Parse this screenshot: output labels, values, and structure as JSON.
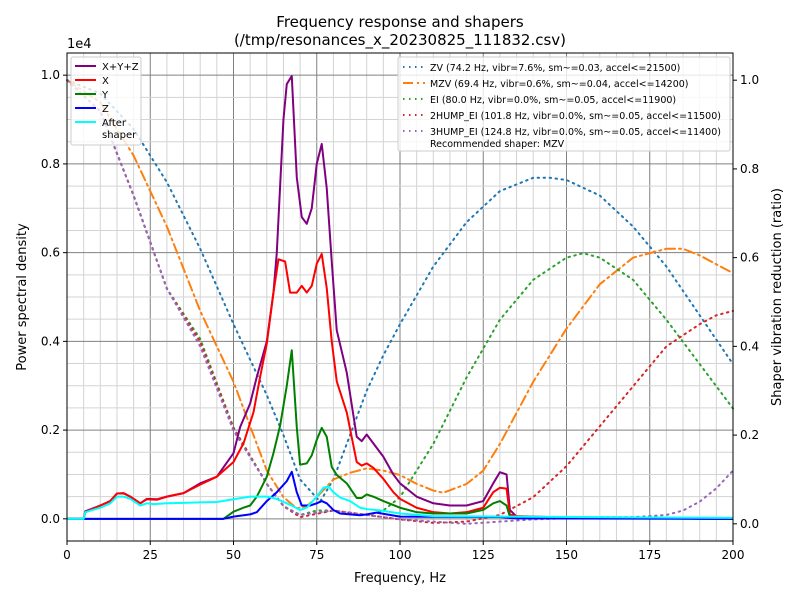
{
  "chart_data": {
    "type": "line",
    "title": "Frequency response and shapers",
    "subtitle": "(/tmp/resonances_x_20230825_111832.csv)",
    "xlabel": "Frequency, Hz",
    "ylabel": "Power spectral density",
    "ylabel_right": "Shaper vibration reduction (ratio)",
    "y_offset_label": "1e4",
    "xlim": [
      0,
      200
    ],
    "ylim": [
      -0.05,
      1.05
    ],
    "ylim_right": [
      -0.05,
      1.05
    ],
    "grid": true,
    "x_ticks": [
      "0",
      "25",
      "50",
      "75",
      "100",
      "125",
      "150",
      "175",
      "200"
    ],
    "y_ticks": [
      "0.0",
      "0.2",
      "0.4",
      "0.6",
      "0.8",
      "1.0"
    ],
    "y_ticks_right": [
      "0.0",
      "0.2",
      "0.4",
      "0.6",
      "0.8",
      "1.0"
    ],
    "legend_left_position": "top-left",
    "legend_right_position": "top-right",
    "psd_series": [
      {
        "name": "X+Y+Z",
        "color": "#800080",
        "x": [
          0,
          5,
          5.5,
          10,
          13,
          15,
          17,
          19,
          22,
          24,
          27,
          30,
          35,
          40,
          45,
          50,
          52,
          55,
          57,
          60,
          62,
          63,
          65,
          66,
          67.5,
          69,
          70.5,
          72,
          73.5,
          75,
          76.5,
          78,
          79.5,
          81,
          84,
          87,
          88.5,
          90,
          92,
          95,
          98,
          100,
          105,
          110,
          115,
          120,
          125,
          128,
          130,
          132,
          133,
          135,
          140,
          150,
          200
        ],
        "y": [
          0,
          0,
          0.017,
          0.03,
          0.04,
          0.057,
          0.058,
          0.05,
          0.035,
          0.045,
          0.044,
          0.05,
          0.058,
          0.08,
          0.095,
          0.148,
          0.207,
          0.26,
          0.32,
          0.4,
          0.51,
          0.6,
          0.9,
          0.98,
          0.998,
          0.77,
          0.68,
          0.665,
          0.7,
          0.8,
          0.845,
          0.745,
          0.58,
          0.425,
          0.33,
          0.185,
          0.175,
          0.19,
          0.17,
          0.14,
          0.1,
          0.08,
          0.05,
          0.035,
          0.03,
          0.03,
          0.04,
          0.08,
          0.105,
          0.1,
          0.02,
          0.005,
          0.004,
          0.002,
          0
        ]
      },
      {
        "name": "X",
        "color": "#ff0000",
        "x": [
          0,
          5,
          5.5,
          10,
          13,
          15,
          17,
          19,
          22,
          24,
          27,
          30,
          35,
          40,
          45,
          50,
          53,
          56,
          58,
          60,
          62,
          63.5,
          65.5,
          67,
          69,
          70.5,
          72,
          73.5,
          75,
          76.5,
          78,
          79.5,
          81,
          84,
          87,
          88.5,
          90,
          92,
          95,
          98,
          100,
          105,
          110,
          115,
          120,
          125,
          128,
          130,
          132,
          133,
          135,
          150,
          200
        ],
        "y": [
          0,
          0,
          0.015,
          0.03,
          0.04,
          0.057,
          0.057,
          0.05,
          0.035,
          0.044,
          0.043,
          0.05,
          0.058,
          0.077,
          0.095,
          0.128,
          0.17,
          0.24,
          0.32,
          0.395,
          0.51,
          0.585,
          0.58,
          0.51,
          0.51,
          0.525,
          0.51,
          0.525,
          0.575,
          0.597,
          0.52,
          0.4,
          0.31,
          0.24,
          0.128,
          0.12,
          0.125,
          0.115,
          0.09,
          0.06,
          0.045,
          0.025,
          0.015,
          0.012,
          0.015,
          0.025,
          0.06,
          0.07,
          0.068,
          0.01,
          0.006,
          0.003,
          0
        ]
      },
      {
        "name": "Y",
        "color": "#008000",
        "x": [
          0,
          47,
          50,
          53,
          55,
          57,
          60,
          62,
          64,
          66,
          67.5,
          69,
          70,
          72,
          73.5,
          75,
          76.5,
          78,
          79.5,
          81,
          84,
          87,
          88.5,
          90,
          92,
          95,
          100,
          105,
          110,
          120,
          125,
          128,
          130,
          132,
          133,
          200
        ],
        "y": [
          0,
          0,
          0.016,
          0.025,
          0.03,
          0.05,
          0.095,
          0.148,
          0.21,
          0.3,
          0.38,
          0.207,
          0.122,
          0.125,
          0.143,
          0.178,
          0.205,
          0.185,
          0.117,
          0.099,
          0.08,
          0.047,
          0.047,
          0.055,
          0.05,
          0.04,
          0.025,
          0.015,
          0.012,
          0.012,
          0.02,
          0.035,
          0.04,
          0.03,
          0.005,
          0
        ]
      },
      {
        "name": "Z",
        "color": "#0000ff",
        "x": [
          0,
          47,
          50,
          55,
          57,
          60,
          63,
          66,
          67.5,
          69,
          70.5,
          73,
          75,
          76.5,
          78,
          80,
          82,
          85,
          88,
          90,
          93,
          96,
          100,
          130,
          135,
          200
        ],
        "y": [
          0,
          0,
          0.005,
          0.01,
          0.015,
          0.04,
          0.06,
          0.085,
          0.106,
          0.06,
          0.03,
          0.03,
          0.035,
          0.04,
          0.035,
          0.02,
          0.012,
          0.01,
          0.008,
          0.01,
          0.014,
          0.01,
          0.005,
          0.004,
          0.001,
          0
        ]
      },
      {
        "name": "After\nshaper",
        "color": "#00ffff",
        "x": [
          0,
          5,
          5.5,
          10,
          13,
          15,
          17,
          19,
          22,
          24,
          26,
          30,
          35,
          40,
          45,
          50,
          55,
          60,
          63,
          66,
          68,
          70,
          72,
          75,
          77,
          78.5,
          80,
          82,
          85,
          88,
          90,
          95,
          100,
          110,
          200
        ],
        "y": [
          0,
          0,
          0.015,
          0.025,
          0.035,
          0.05,
          0.05,
          0.045,
          0.03,
          0.035,
          0.033,
          0.035,
          0.036,
          0.037,
          0.038,
          0.044,
          0.05,
          0.05,
          0.045,
          0.035,
          0.028,
          0.02,
          0.025,
          0.05,
          0.07,
          0.073,
          0.06,
          0.048,
          0.04,
          0.025,
          0.022,
          0.018,
          0.012,
          0.006,
          0.002
        ]
      }
    ],
    "shaper_series": [
      {
        "name": "ZV (74.2 Hz, vibr=7.6%, sm~=0.03, accel<=21500)",
        "color": "#1f77b4",
        "style": "dotted",
        "x": [
          0,
          10,
          20,
          30,
          40,
          50,
          60,
          65,
          70,
          76,
          80,
          85,
          90,
          95,
          100,
          110,
          120,
          130,
          140,
          145,
          150,
          160,
          170,
          180,
          190,
          200
        ],
        "y": [
          1.0,
          0.97,
          0.89,
          0.77,
          0.62,
          0.45,
          0.29,
          0.2,
          0.1,
          0.05,
          0.1,
          0.2,
          0.3,
          0.38,
          0.45,
          0.58,
          0.68,
          0.75,
          0.78,
          0.78,
          0.775,
          0.74,
          0.67,
          0.58,
          0.47,
          0.36
        ]
      },
      {
        "name": "MZV (69.4 Hz, vibr=0.6%, sm~=0.04, accel<=14200)",
        "color": "#ff7f0e",
        "style": "dashdot",
        "x": [
          0,
          10,
          20,
          30,
          40,
          45,
          50,
          55,
          60,
          65,
          69,
          72,
          75,
          80,
          85,
          90,
          95,
          100,
          105,
          110,
          113,
          120,
          125,
          130,
          140,
          150,
          160,
          170,
          180,
          185,
          190,
          200
        ],
        "y": [
          1.0,
          0.95,
          0.83,
          0.67,
          0.48,
          0.4,
          0.32,
          0.22,
          0.12,
          0.06,
          0.035,
          0.04,
          0.06,
          0.1,
          0.115,
          0.125,
          0.12,
          0.11,
          0.09,
          0.075,
          0.07,
          0.09,
          0.12,
          0.18,
          0.32,
          0.44,
          0.54,
          0.6,
          0.62,
          0.62,
          0.605,
          0.565
        ]
      },
      {
        "name": "EI (80.0 Hz, vibr=0.0%, sm~=0.05, accel<=11900)",
        "color": "#2ca02c",
        "style": "dotted",
        "x": [
          0,
          10,
          20,
          30,
          40,
          50,
          60,
          65,
          70,
          75,
          80,
          85,
          90,
          95,
          100,
          110,
          120,
          130,
          140,
          150,
          155,
          160,
          170,
          180,
          190,
          200
        ],
        "y": [
          1.0,
          0.93,
          0.74,
          0.53,
          0.417,
          0.217,
          0.09,
          0.04,
          0.02,
          0.03,
          0.03,
          0.025,
          0.02,
          0.03,
          0.06,
          0.18,
          0.33,
          0.46,
          0.55,
          0.6,
          0.61,
          0.6,
          0.55,
          0.46,
          0.36,
          0.26
        ]
      },
      {
        "name": "2HUMP_EI (101.8 Hz, vibr=0.0%, sm~=0.05, accel<=11500)",
        "color": "#d62728",
        "style": "dotted",
        "x": [
          0,
          10,
          20,
          30,
          40,
          50,
          60,
          65,
          70,
          80,
          90,
          100,
          110,
          120,
          130,
          140,
          150,
          160,
          170,
          180,
          190,
          195,
          200
        ],
        "y": [
          1.0,
          0.93,
          0.74,
          0.53,
          0.41,
          0.215,
          0.09,
          0.04,
          0.015,
          0.03,
          0.02,
          0.01,
          0.002,
          0.005,
          0.02,
          0.06,
          0.13,
          0.22,
          0.31,
          0.4,
          0.45,
          0.47,
          0.48
        ]
      },
      {
        "name": "3HUMP_EI (124.8 Hz, vibr=0.0%, sm~=0.05, accel<=11400)",
        "color": "#9467bd",
        "style": "dotted",
        "x": [
          0,
          10,
          20,
          30,
          40,
          50,
          60,
          65,
          70,
          80,
          90,
          100,
          120,
          140,
          160,
          170,
          180,
          185,
          190,
          195,
          200
        ],
        "y": [
          1.0,
          0.93,
          0.74,
          0.53,
          0.4,
          0.21,
          0.09,
          0.04,
          0.02,
          0.03,
          0.02,
          0.01,
          0.0,
          0.01,
          0.015,
          0.015,
          0.02,
          0.03,
          0.05,
          0.08,
          0.12
        ]
      }
    ],
    "recommendation": "Recommended shaper: MZV"
  }
}
